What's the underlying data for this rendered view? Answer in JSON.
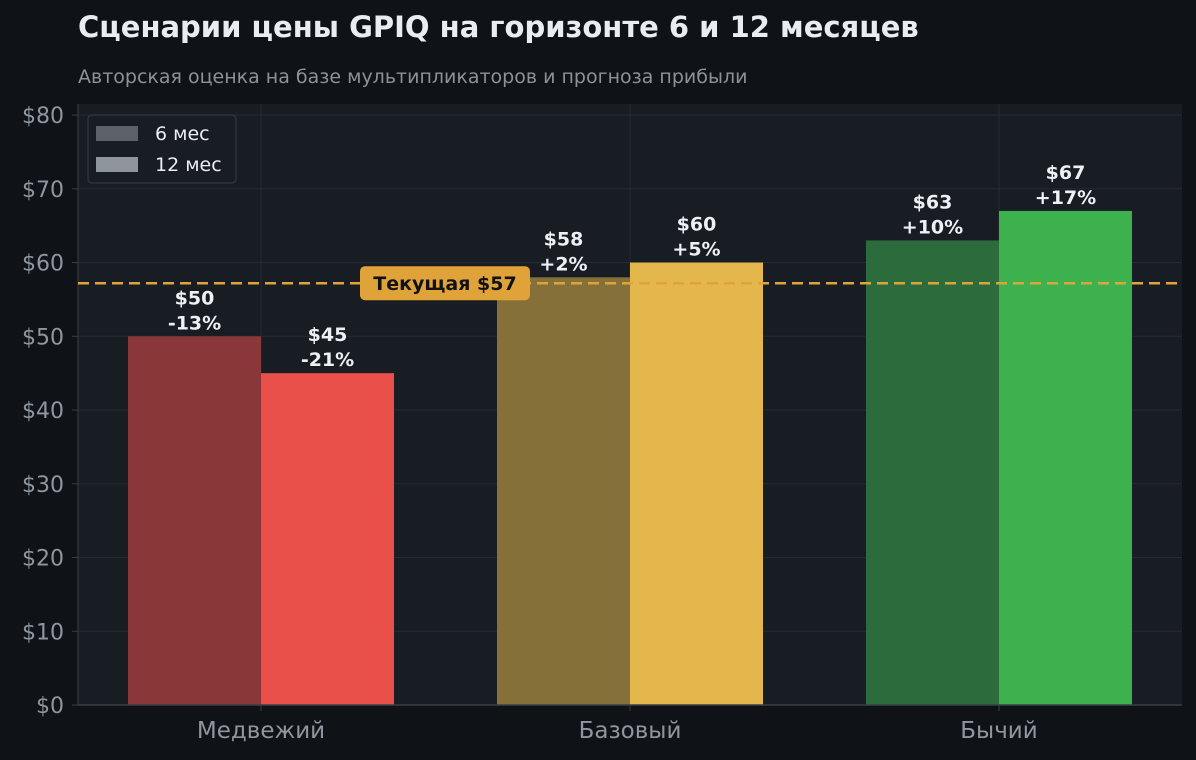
{
  "chart_data": {
    "type": "bar",
    "title": "Сценарии цены GPIQ на горизонте 6 и 12 месяцев",
    "subtitle": "Авторская оценка на базе мультипликаторов и прогноза прибыли",
    "categories": [
      "Медвежий",
      "Базовый",
      "Бычий"
    ],
    "series": [
      {
        "name": "6 мес",
        "values": [
          50,
          58,
          63
        ],
        "labels": [
          "$50\n-13%",
          "$58\n+2%",
          "$63\n+10%"
        ],
        "colors": [
          "#8a373a",
          "#85703a",
          "#2c6b3c"
        ]
      },
      {
        "name": "12 мес",
        "values": [
          45,
          60,
          67
        ],
        "labels": [
          "$45\n-21%",
          "$60\n+5%",
          "$67\n+17%"
        ],
        "colors": [
          "#e9504a",
          "#e4b74c",
          "#3db14d"
        ]
      }
    ],
    "reference_line": {
      "value": 57.2,
      "label": "Текущая $57",
      "color": "#e0a33a"
    },
    "y_ticks": [
      "$0",
      "$10",
      "$20",
      "$30",
      "$40",
      "$50",
      "$60",
      "$70",
      "$80"
    ],
    "ylim": [
      0,
      81.5
    ],
    "grid": true,
    "legend_position": "top-left",
    "legend_colors": [
      "#5b6069",
      "#8e959d"
    ]
  }
}
